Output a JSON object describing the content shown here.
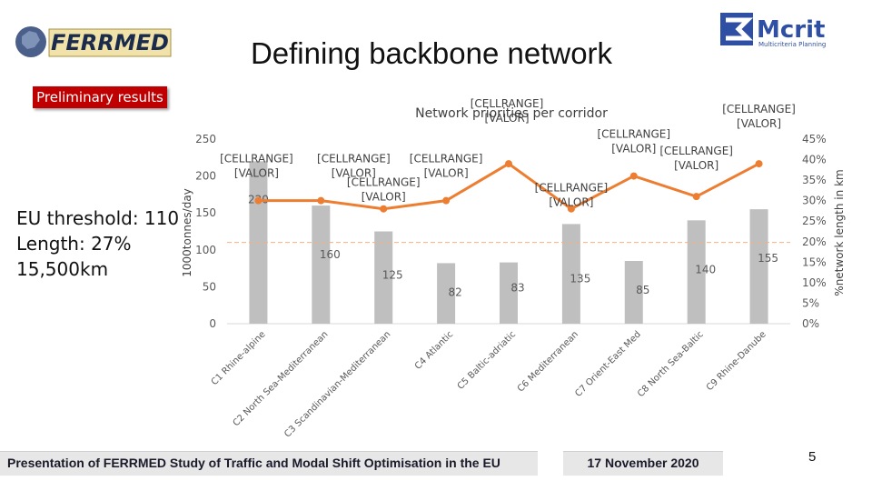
{
  "slide": {
    "title": "Defining backbone network",
    "badge": "Preliminary results",
    "threshold_lines": [
      "EU threshold: 110",
      "Length: 27%",
      "15,500km"
    ],
    "footer_left": "Presentation of FERRMED Study of Traffic and Modal Shift Optimisation in the EU",
    "footer_date": "17 November 2020",
    "page_number": "5",
    "logo_left_text": "FERRMED",
    "logo_right_text": "Mcrit",
    "logo_right_subtext": "Multicriteria Planning",
    "colors": {
      "accent_red": "#c00000",
      "bar": "#bfbfbf",
      "line": "#ed7d31",
      "threshold": "#f4b183",
      "mcrit_blue": "#2e4fa3"
    }
  },
  "chart_data": {
    "type": "bar",
    "title": "Network priorities per corridor",
    "ylabel": "1000tonnes/day",
    "y2label": "%network length in km",
    "ylim": [
      0,
      250
    ],
    "y2lim": [
      0,
      45
    ],
    "yticks": [
      "0",
      "50",
      "100",
      "150",
      "200",
      "250"
    ],
    "y2ticks": [
      "0%",
      "5%",
      "10%",
      "15%",
      "20%",
      "25%",
      "30%",
      "35%",
      "40%",
      "45%"
    ],
    "threshold": 110,
    "categories": [
      "C1 Rhine-alpine",
      "C2 North Sea-Mediterranean",
      "C3 Scandinavian-Mediterranean",
      "C4 Atlantic",
      "C5 Baltic-adriatic",
      "C6 Mediterranean",
      "C7 Orient-East Med",
      "C8 North Sea-Baltic",
      "C9 Rhine-Danube"
    ],
    "series": [
      {
        "kind": "bar",
        "values": [
          220,
          160,
          125,
          82,
          83,
          135,
          85,
          140,
          155
        ]
      },
      {
        "kind": "line",
        "axis": "secondary",
        "values": [
          30,
          30,
          28,
          30,
          39,
          28,
          36,
          31,
          39
        ]
      }
    ],
    "line_labels": [
      [
        "[CELLRANGE]",
        "[VALOR]"
      ],
      [
        "[CELLRANGE]",
        "[VALOR]"
      ],
      [
        "[CELLRANGE]",
        "[VALOR]"
      ],
      [
        "[CELLRANGE]",
        "[VALOR]"
      ],
      [
        "[CELLRANGE]",
        "[VALOR]"
      ],
      [
        "[CELLRANGE]",
        "[VALOR]"
      ],
      [
        "[CELLRANGE]",
        "[VALOR]"
      ],
      [
        "[CELLRANGE]",
        "[VALOR]"
      ],
      [
        "[CELLRANGE]",
        "[VALOR]"
      ]
    ],
    "grid": false,
    "legend": "none"
  }
}
